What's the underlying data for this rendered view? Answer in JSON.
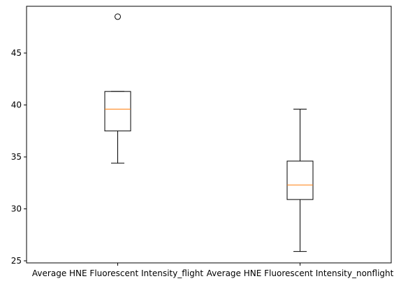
{
  "chart_data": {
    "type": "boxplot",
    "title": "",
    "xlabel": "",
    "ylabel": "",
    "ylim": [
      24.8,
      49.5
    ],
    "yticks": [
      25,
      30,
      35,
      40,
      45
    ],
    "grid": false,
    "colors": {
      "box": "#000000",
      "median": "#ff7f0e",
      "frame": "#000000"
    },
    "boxes": [
      {
        "label": "Average HNE Fluorescent Intensity_flight",
        "whisker_low": 34.4,
        "q1": 37.5,
        "median": 39.6,
        "q3": 41.3,
        "whisker_high": 41.3,
        "outliers": [
          48.5
        ]
      },
      {
        "label": "Average HNE Fluorescent Intensity_nonflight",
        "whisker_low": 25.9,
        "q1": 30.9,
        "median": 32.3,
        "q3": 34.6,
        "whisker_high": 39.6,
        "outliers": []
      }
    ]
  }
}
